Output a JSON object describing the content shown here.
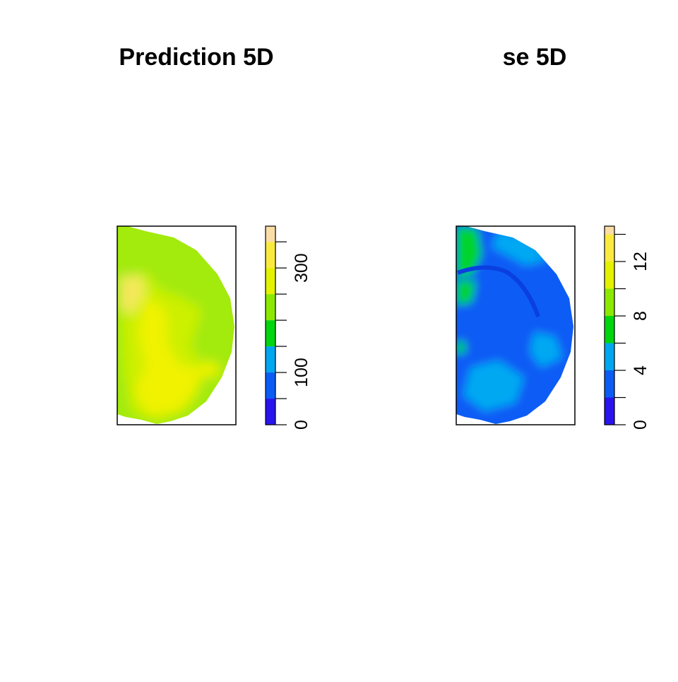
{
  "chart_data": [
    {
      "type": "heatmap",
      "title": "Prediction 5D",
      "legend": {
        "range": [
          0,
          380
        ],
        "ticks": [
          0,
          50,
          100,
          150,
          200,
          250,
          300,
          350
        ],
        "tick_labels": [
          {
            "value": 0,
            "label": "0"
          },
          {
            "value": 100,
            "label": "100"
          },
          {
            "value": 300,
            "label": "300"
          }
        ],
        "bands": [
          {
            "from": 0,
            "to": 50,
            "color": "#2a14ee"
          },
          {
            "from": 50,
            "to": 100,
            "color": "#0a5cf5"
          },
          {
            "from": 100,
            "to": 150,
            "color": "#00a6f0"
          },
          {
            "from": 150,
            "to": 200,
            "color": "#00d60f"
          },
          {
            "from": 200,
            "to": 250,
            "color": "#8be800"
          },
          {
            "from": 250,
            "to": 300,
            "color": "#e3f200"
          },
          {
            "from": 300,
            "to": 350,
            "color": "#faea40"
          },
          {
            "from": 350,
            "to": 380,
            "color": "#fadca6"
          }
        ]
      },
      "map": {
        "dominant_values": [
          {
            "label": "outer ring",
            "value": 215,
            "color": "#a3ea10"
          },
          {
            "label": "inner core",
            "value": 255,
            "color": "#ccf000"
          },
          {
            "label": "high pockets",
            "value": 285,
            "color": "#f0f200"
          },
          {
            "label": "top-left peak",
            "value": 310,
            "color": "#f4e85a"
          }
        ]
      }
    },
    {
      "type": "heatmap",
      "title": "se 5D",
      "legend": {
        "range": [
          0,
          14.6
        ],
        "ticks": [
          0,
          2,
          4,
          6,
          8,
          10,
          12,
          14
        ],
        "tick_labels": [
          {
            "value": 0,
            "label": "0"
          },
          {
            "value": 4,
            "label": "4"
          },
          {
            "value": 8,
            "label": "8"
          },
          {
            "value": 12,
            "label": "12"
          }
        ],
        "bands": [
          {
            "from": 0,
            "to": 2,
            "color": "#2a14ee"
          },
          {
            "from": 2,
            "to": 4,
            "color": "#0a5cf5"
          },
          {
            "from": 4,
            "to": 6,
            "color": "#00a6f0"
          },
          {
            "from": 6,
            "to": 8,
            "color": "#00d60f"
          },
          {
            "from": 8,
            "to": 10,
            "color": "#8be800"
          },
          {
            "from": 10,
            "to": 12,
            "color": "#e3f200"
          },
          {
            "from": 12,
            "to": 14,
            "color": "#faea40"
          },
          {
            "from": 14,
            "to": 14.6,
            "color": "#fadca6"
          }
        ]
      },
      "map": {
        "dominant_values": [
          {
            "label": "background",
            "value": 3,
            "color": "#0a5cf5"
          },
          {
            "label": "patches",
            "value": 4.6,
            "color": "#00a8f2"
          },
          {
            "label": "upper-left edge",
            "value": 6.5,
            "color": "#00d42a"
          }
        ]
      }
    }
  ]
}
